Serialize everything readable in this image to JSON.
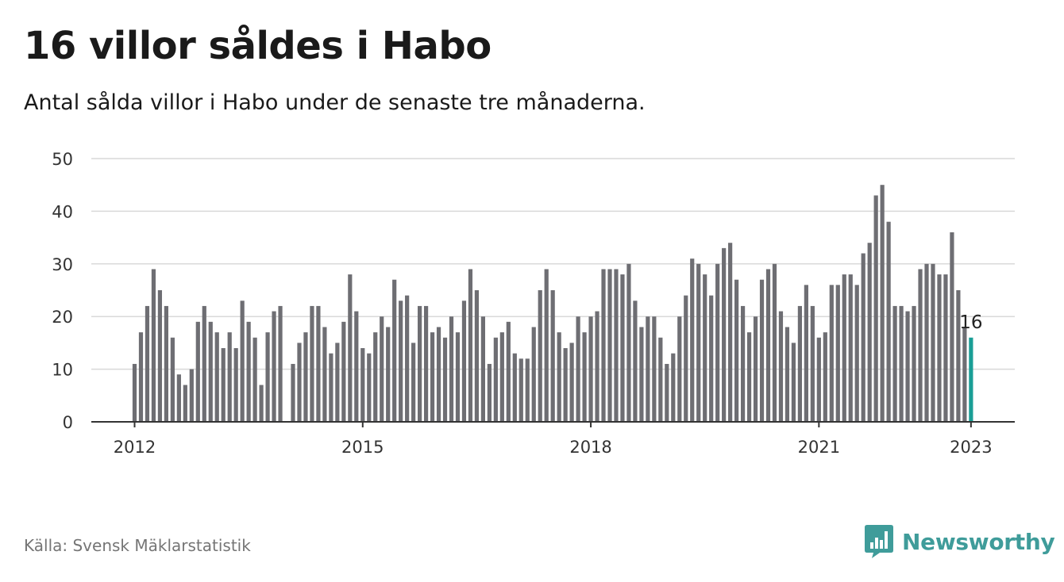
{
  "header": {
    "title": "16 villor såldes i Habo",
    "subtitle": "Antal sålda villor i Habo under de senaste tre månaderna."
  },
  "footer": {
    "source": "Källa: Svensk Mäklarstatistik",
    "brand": "Newsworthy",
    "brand_icon": "newsworthy-logo-icon"
  },
  "colors": {
    "bar": "#6e6e73",
    "highlight": "#1a9e96",
    "grid": "#d9d9d9",
    "axis": "#333333",
    "brand": "#3f9c9a"
  },
  "chart_data": {
    "type": "bar",
    "title": "16 villor såldes i Habo",
    "subtitle": "Antal sålda villor i Habo under de senaste tre månaderna.",
    "xlabel": "",
    "ylabel": "",
    "ylim": [
      0,
      50
    ],
    "yticks": [
      0,
      10,
      20,
      30,
      40,
      50
    ],
    "xticks": [
      {
        "label": "2012",
        "month": "2012-01"
      },
      {
        "label": "2015",
        "month": "2015-01"
      },
      {
        "label": "2018",
        "month": "2018-01"
      },
      {
        "label": "2021",
        "month": "2021-01"
      },
      {
        "label": "2023",
        "month": "2023-01"
      }
    ],
    "grid": true,
    "start_month": "2012-01",
    "values": [
      11,
      17,
      22,
      29,
      25,
      22,
      16,
      9,
      7,
      10,
      19,
      22,
      19,
      17,
      14,
      17,
      14,
      23,
      19,
      16,
      7,
      17,
      21,
      22,
      null,
      11,
      15,
      17,
      22,
      22,
      18,
      13,
      15,
      19,
      28,
      21,
      14,
      13,
      17,
      20,
      18,
      27,
      23,
      24,
      15,
      22,
      22,
      17,
      18,
      16,
      20,
      17,
      23,
      29,
      25,
      20,
      11,
      16,
      17,
      19,
      13,
      12,
      12,
      18,
      25,
      29,
      25,
      17,
      14,
      15,
      20,
      17,
      20,
      21,
      29,
      29,
      29,
      28,
      30,
      23,
      18,
      20,
      20,
      16,
      11,
      13,
      20,
      24,
      31,
      30,
      28,
      24,
      30,
      33,
      34,
      27,
      22,
      17,
      20,
      27,
      29,
      30,
      21,
      18,
      15,
      22,
      26,
      22,
      16,
      17,
      26,
      26,
      28,
      28,
      26,
      32,
      34,
      43,
      45,
      38,
      22,
      22,
      21,
      22,
      29,
      30,
      30,
      28,
      28,
      36,
      25,
      18,
      16
    ],
    "highlight": {
      "month": "2023-01",
      "value": 16,
      "label": "16"
    }
  }
}
